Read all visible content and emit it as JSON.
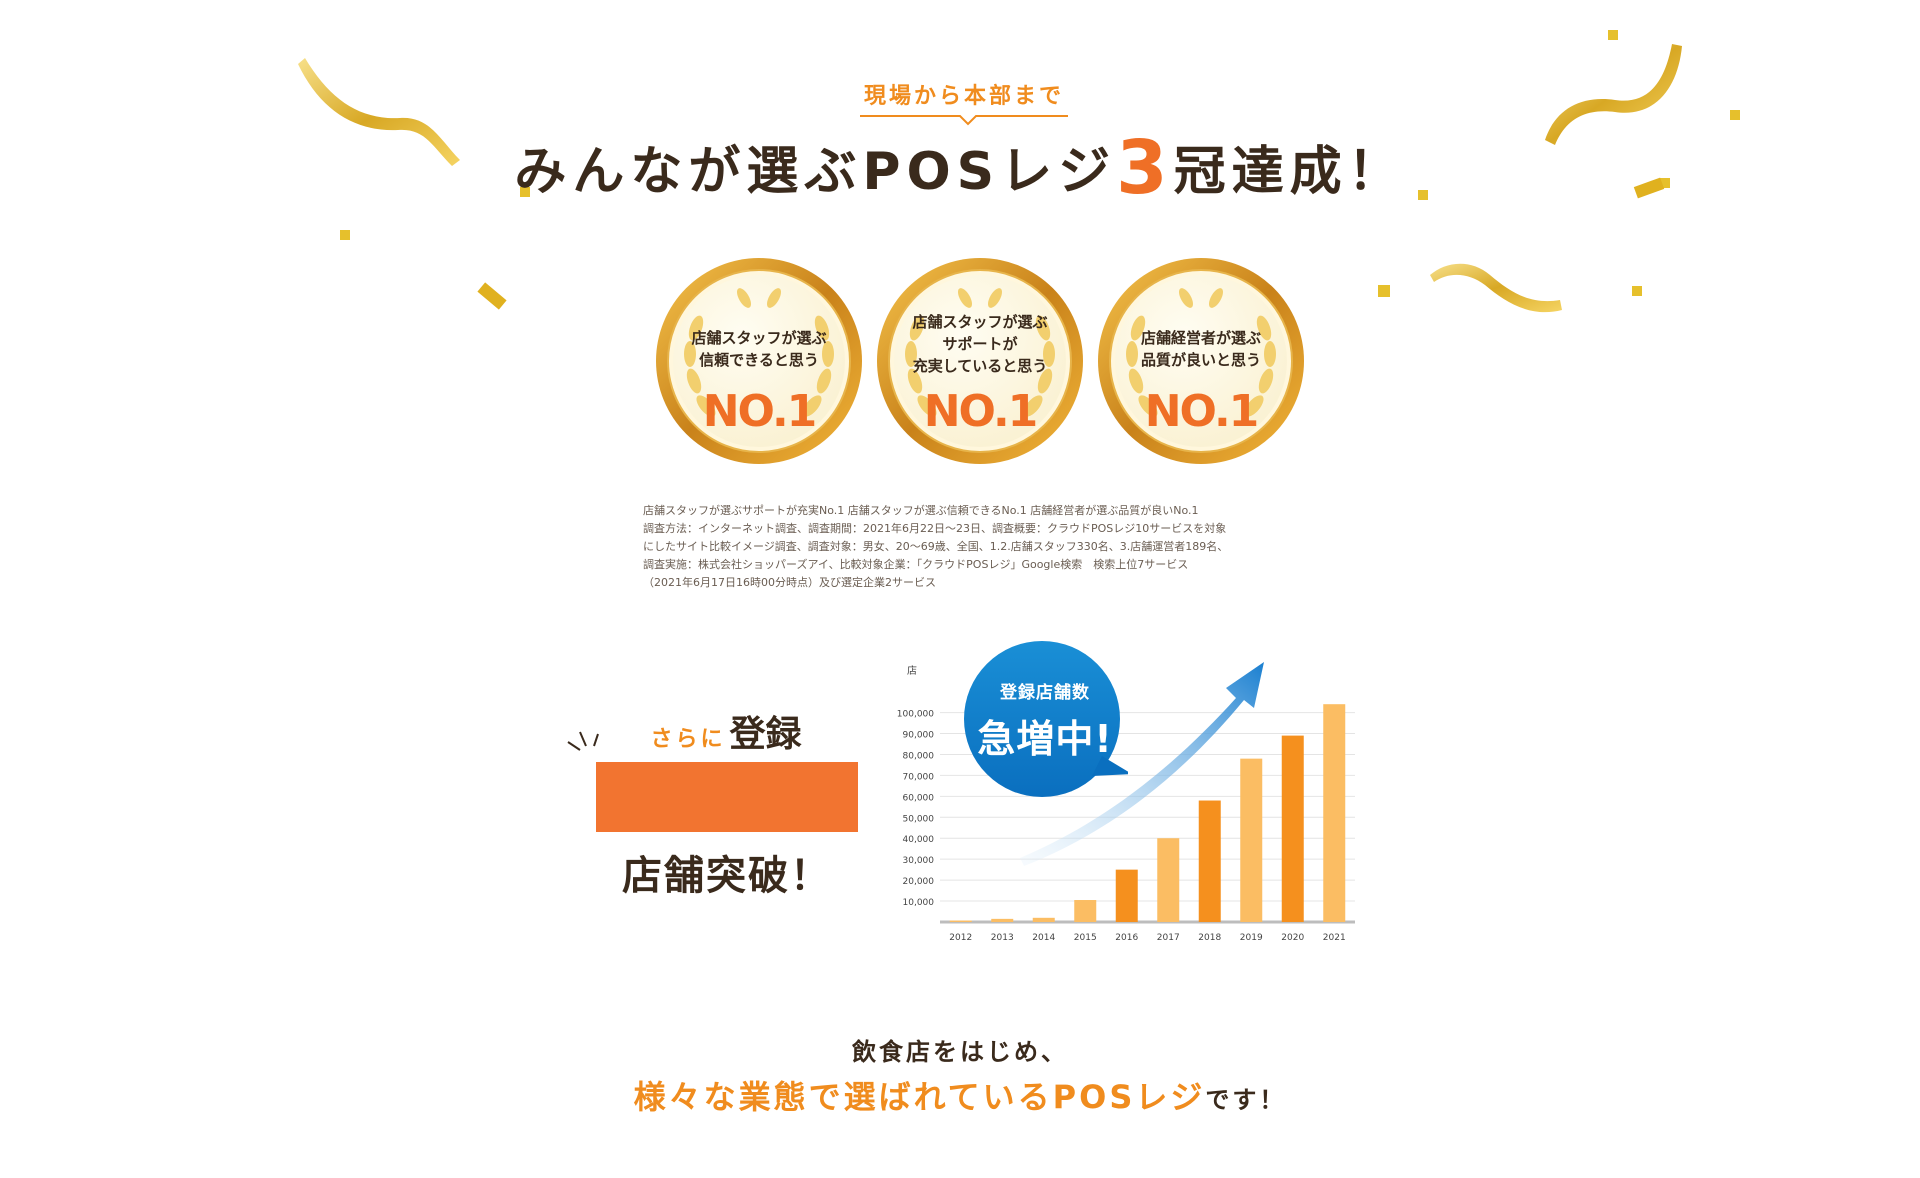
{
  "header": {
    "eyebrow": "現場から本部まで",
    "headline_pre": "みんなが選ぶPOSレジ",
    "headline_num": "3",
    "headline_post": "冠達成！"
  },
  "medals": [
    {
      "line1": "店舗スタッフが選ぶ",
      "line2": "信頼できると思う",
      "line3": "",
      "rank": "NO.1"
    },
    {
      "line1": "店舗スタッフが選ぶ",
      "line2": "サポートが",
      "line3": "充実していると思う",
      "rank": "NO.1"
    },
    {
      "line1": "店舗経営者が選ぶ",
      "line2": "品質が良いと思う",
      "line3": "",
      "rank": "NO.1"
    }
  ],
  "notes": [
    "店舗スタッフが選ぶサポートが充実No.1 店舗スタッフが選ぶ信頼できるNo.1 店舗経営者が選ぶ品質が良いNo.1",
    "調査方法：インターネット調査、調査期間：2021年6月22日〜23日、調査概要：クラウドPOSレジ10サービスを対象",
    "にしたサイト比較イメージ調査、調査対象：男女、20〜69歳、全国、1.2.店舗スタッフ330名、3.店舗運営者189名、",
    "調査実施：株式会社ショッパーズアイ、比較対象企業：「クラウドPOSレジ」Google検索　検索上位7サービス",
    "（2021年6月17日16時00分時点）及び選定企業2サービス"
  ],
  "registration": {
    "prefix": "さらに",
    "label": "登録",
    "suffix": "店舗突破！"
  },
  "bubble": {
    "small": "登録店舗数",
    "big": "急増中!"
  },
  "chart_data": {
    "type": "bar",
    "ylabel": "店",
    "ylim": [
      0,
      100000
    ],
    "yticks": [
      "10,000",
      "20,000",
      "30,000",
      "40,000",
      "50,000",
      "60,000",
      "70,000",
      "80,000",
      "90,000",
      "100,000"
    ],
    "categories": [
      "2012",
      "2013",
      "2014",
      "2015",
      "2016",
      "2017",
      "2018",
      "2019",
      "2020",
      "2021"
    ],
    "values": [
      700,
      1500,
      2000,
      10500,
      25000,
      40000,
      58000,
      78000,
      89000,
      104000
    ],
    "grid": true,
    "colors": {
      "light": "#fbbd63",
      "dark": "#f5901e"
    }
  },
  "bottom": {
    "line1": "飲食店をはじめ、",
    "line2_em": "様々な業態で選ばれているPOSレジ",
    "line2_tail": "です！"
  }
}
